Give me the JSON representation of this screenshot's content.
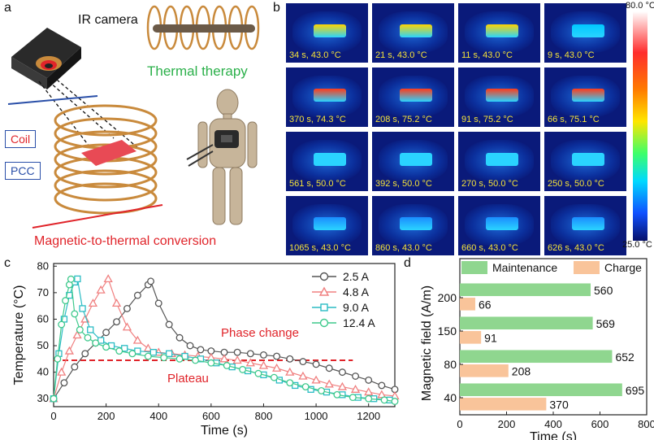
{
  "panel_a": {
    "label": "a",
    "ir_camera": "IR camera",
    "thermal_therapy": "Thermal therapy",
    "coil": "Coil",
    "pcc": "PCC",
    "conversion": "Magnetic-to-thermal conversion",
    "colors": {
      "coil_red": "#e0242a",
      "pcc_blue": "#2a4fa8",
      "therapy_green": "#2bb04a",
      "conversion_red": "#e0242a",
      "copper": "#c98a3c"
    }
  },
  "panel_b": {
    "label": "b",
    "colorbar_max": "80.0 °C",
    "colorbar_min": "25.0 °C",
    "cells": [
      {
        "caption": "34 s, 43.0 °C",
        "hot": "#ffd400"
      },
      {
        "caption": "21 s, 43.0 °C",
        "hot": "#ffd400"
      },
      {
        "caption": "11 s, 43.0 °C",
        "hot": "#ffd400"
      },
      {
        "caption": "9 s, 43.0 °C",
        "hot": "#00c8ff"
      },
      {
        "caption": "370 s, 74.3 °C",
        "hot": "#ff3a1a"
      },
      {
        "caption": "208 s, 75.2 °C",
        "hot": "#ff3a1a"
      },
      {
        "caption": "91 s, 75.2 °C",
        "hot": "#ff3a1a"
      },
      {
        "caption": "66 s, 75.1 °C",
        "hot": "#ff3a1a"
      },
      {
        "caption": "561 s, 50.0 °C",
        "hot": "#2ad4ff"
      },
      {
        "caption": "392 s, 50.0 °C",
        "hot": "#2ad4ff"
      },
      {
        "caption": "270 s, 50.0 °C",
        "hot": "#2ad4ff"
      },
      {
        "caption": "250 s, 50.0 °C",
        "hot": "#2ad4ff"
      },
      {
        "caption": "1065 s, 43.0 °C",
        "hot": "#1a8cff"
      },
      {
        "caption": "860 s, 43.0 °C",
        "hot": "#1a8cff"
      },
      {
        "caption": "660 s, 43.0 °C",
        "hot": "#1a8cff"
      },
      {
        "caption": "626 s, 43.0 °C",
        "hot": "#1a8cff"
      }
    ]
  },
  "chart_data": [
    {
      "panel": "c",
      "type": "line",
      "xlabel": "Time (s)",
      "ylabel": "Temperature (°C)",
      "xlim": [
        0,
        1300
      ],
      "ylim": [
        27,
        81
      ],
      "xticks": [
        "0",
        "200",
        "400",
        "600",
        "800",
        "1000",
        "1200"
      ],
      "yticks": [
        "30",
        "40",
        "50",
        "60",
        "70",
        "80"
      ],
      "annotations": {
        "phase_change": "Phase change",
        "plateau": "Plateau"
      },
      "plateau_line": {
        "y": 44.5,
        "x": [
          0,
          1140
        ],
        "color": "#e0242a"
      },
      "legend_position": "top-right",
      "series": [
        {
          "name": "2.5 A",
          "color": "#555555",
          "marker": "circle",
          "x": [
            0,
            40,
            80,
            120,
            160,
            200,
            240,
            280,
            320,
            360,
            370,
            400,
            440,
            480,
            520,
            560,
            600,
            650,
            700,
            750,
            800,
            850,
            900,
            950,
            1000,
            1050,
            1100,
            1150,
            1200,
            1250,
            1300
          ],
          "y": [
            30,
            36,
            42,
            47,
            51,
            55,
            59,
            64,
            69,
            73,
            74.3,
            66,
            58,
            53,
            50,
            48.5,
            48,
            47.5,
            47.5,
            47,
            46.5,
            46,
            45,
            44,
            43,
            41.5,
            40,
            38.5,
            37,
            35,
            33.5
          ]
        },
        {
          "name": "4.8 A",
          "color": "#f08080",
          "marker": "triangle",
          "x": [
            0,
            30,
            60,
            90,
            120,
            150,
            180,
            208,
            240,
            280,
            320,
            360,
            400,
            450,
            500,
            550,
            600,
            650,
            700,
            750,
            800,
            850,
            900,
            950,
            1000,
            1050,
            1100,
            1150,
            1200,
            1250,
            1300
          ],
          "y": [
            30,
            40,
            48,
            54,
            60,
            66,
            71,
            75.2,
            66,
            57,
            52,
            49,
            47.5,
            47,
            46.5,
            46,
            45.5,
            45,
            44.5,
            43.5,
            42.5,
            41.5,
            40,
            38.5,
            37,
            35.5,
            34.5,
            33.5,
            32.5,
            31.5,
            31
          ]
        },
        {
          "name": "9.0 A",
          "color": "#2bbcc4",
          "marker": "square",
          "x": [
            0,
            20,
            40,
            60,
            80,
            91,
            110,
            140,
            180,
            220,
            270,
            320,
            380,
            440,
            500,
            560,
            620,
            680,
            740,
            800,
            860,
            920,
            980,
            1040,
            1100,
            1160,
            1220,
            1280
          ],
          "y": [
            30,
            47,
            60,
            69,
            74,
            75.2,
            64,
            56,
            52,
            50,
            49,
            48,
            47.5,
            47,
            46,
            45,
            43.5,
            42,
            40.5,
            39,
            37,
            35,
            33.5,
            32.5,
            31.5,
            30.5,
            30,
            29.5
          ]
        },
        {
          "name": "12.4 A",
          "color": "#3ec98c",
          "marker": "circle",
          "x": [
            0,
            15,
            30,
            45,
            60,
            66,
            80,
            100,
            130,
            160,
            200,
            250,
            300,
            360,
            420,
            480,
            540,
            600,
            660,
            720,
            780,
            840,
            900,
            960,
            1020,
            1080,
            1140,
            1200,
            1260,
            1300
          ],
          "y": [
            30,
            45,
            58,
            67,
            73,
            75.1,
            62,
            56,
            53,
            51,
            49.5,
            48,
            47,
            46,
            45.5,
            45,
            44.5,
            43.5,
            42.5,
            41,
            39.5,
            38,
            36,
            34.5,
            33,
            31.5,
            30.5,
            30,
            29.5,
            29
          ]
        }
      ]
    },
    {
      "panel": "d",
      "type": "bar",
      "orientation": "horizontal",
      "xlabel": "Time (s)",
      "ylabel": "Magnetic field (A/m)",
      "xlim": [
        0,
        800
      ],
      "xticks": [
        "0",
        "200",
        "400",
        "600",
        "800"
      ],
      "categories": [
        "200",
        "150",
        "80",
        "40"
      ],
      "legend_position": "top",
      "series": [
        {
          "name": "Maintenance",
          "color": "#8fd68f",
          "values": [
            560,
            569,
            652,
            695
          ]
        },
        {
          "name": "Charge",
          "color": "#f9c49a",
          "values": [
            66,
            91,
            208,
            370
          ]
        }
      ]
    }
  ],
  "panel_c": {
    "label": "c"
  },
  "panel_d": {
    "label": "d"
  }
}
